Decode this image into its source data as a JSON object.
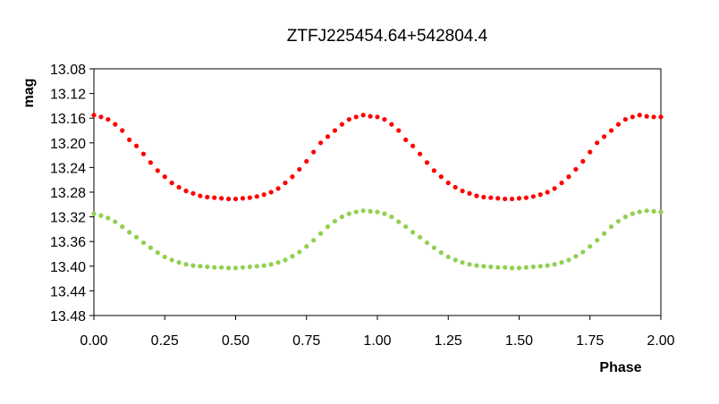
{
  "chart_data": {
    "type": "scatter",
    "title": "ZTFJ225454.64+542804.4",
    "xlabel": "Phase",
    "ylabel": "mag",
    "xlim": [
      0.0,
      2.0
    ],
    "ylim": [
      13.08,
      13.48
    ],
    "y_inverted": true,
    "x_ticks": [
      "0.00",
      "0.25",
      "0.50",
      "0.75",
      "1.00",
      "1.25",
      "1.50",
      "1.75",
      "2.00"
    ],
    "y_ticks": [
      "13.08",
      "13.12",
      "13.16",
      "13.20",
      "13.24",
      "13.28",
      "13.32",
      "13.36",
      "13.40",
      "13.44",
      "13.48"
    ],
    "grid": false,
    "legend": "none",
    "series": [
      {
        "color": "#ff0000",
        "x": [
          0.0,
          0.025,
          0.05,
          0.075,
          0.1,
          0.125,
          0.15,
          0.175,
          0.2,
          0.225,
          0.25,
          0.275,
          0.3,
          0.325,
          0.35,
          0.375,
          0.4,
          0.425,
          0.45,
          0.475,
          0.5,
          0.525,
          0.55,
          0.575,
          0.6,
          0.625,
          0.65,
          0.675,
          0.7,
          0.725,
          0.75,
          0.775,
          0.8,
          0.825,
          0.85,
          0.875,
          0.9,
          0.925,
          0.95,
          0.975,
          1.0,
          1.025,
          1.05,
          1.075,
          1.1,
          1.125,
          1.15,
          1.175,
          1.2,
          1.225,
          1.25,
          1.275,
          1.3,
          1.325,
          1.35,
          1.375,
          1.4,
          1.425,
          1.45,
          1.475,
          1.5,
          1.525,
          1.55,
          1.575,
          1.6,
          1.625,
          1.65,
          1.675,
          1.7,
          1.725,
          1.75,
          1.775,
          1.8,
          1.825,
          1.85,
          1.875,
          1.9,
          1.925,
          1.95,
          1.975,
          2.0
        ],
        "y": [
          13.155,
          13.158,
          13.162,
          13.17,
          13.18,
          13.195,
          13.205,
          13.218,
          13.232,
          13.245,
          13.255,
          13.265,
          13.272,
          13.278,
          13.282,
          13.286,
          13.288,
          13.289,
          13.29,
          13.291,
          13.291,
          13.29,
          13.289,
          13.287,
          13.284,
          13.28,
          13.274,
          13.265,
          13.255,
          13.243,
          13.23,
          13.215,
          13.2,
          13.19,
          13.18,
          13.17,
          13.162,
          13.158,
          13.155,
          13.157,
          13.158,
          13.162,
          13.17,
          13.18,
          13.195,
          13.205,
          13.218,
          13.232,
          13.245,
          13.255,
          13.265,
          13.272,
          13.278,
          13.282,
          13.286,
          13.288,
          13.289,
          13.29,
          13.291,
          13.291,
          13.29,
          13.289,
          13.287,
          13.284,
          13.28,
          13.274,
          13.265,
          13.255,
          13.243,
          13.23,
          13.215,
          13.2,
          13.19,
          13.18,
          13.17,
          13.162,
          13.158,
          13.155,
          13.157,
          13.158,
          13.158
        ]
      },
      {
        "color": "#92d050",
        "x": [
          0.0,
          0.025,
          0.05,
          0.075,
          0.1,
          0.125,
          0.15,
          0.175,
          0.2,
          0.225,
          0.25,
          0.275,
          0.3,
          0.325,
          0.35,
          0.375,
          0.4,
          0.425,
          0.45,
          0.475,
          0.5,
          0.525,
          0.55,
          0.575,
          0.6,
          0.625,
          0.65,
          0.675,
          0.7,
          0.725,
          0.75,
          0.775,
          0.8,
          0.825,
          0.85,
          0.875,
          0.9,
          0.925,
          0.95,
          0.975,
          1.0,
          1.025,
          1.05,
          1.075,
          1.1,
          1.125,
          1.15,
          1.175,
          1.2,
          1.225,
          1.25,
          1.275,
          1.3,
          1.325,
          1.35,
          1.375,
          1.4,
          1.425,
          1.45,
          1.475,
          1.5,
          1.525,
          1.55,
          1.575,
          1.6,
          1.625,
          1.65,
          1.675,
          1.7,
          1.725,
          1.75,
          1.775,
          1.8,
          1.825,
          1.85,
          1.875,
          1.9,
          1.925,
          1.95,
          1.975,
          2.0
        ],
        "y": [
          13.315,
          13.318,
          13.322,
          13.328,
          13.336,
          13.345,
          13.353,
          13.362,
          13.37,
          13.378,
          13.385,
          13.39,
          13.394,
          13.397,
          13.399,
          13.4,
          13.401,
          13.402,
          13.402,
          13.403,
          13.403,
          13.402,
          13.401,
          13.4,
          13.399,
          13.397,
          13.394,
          13.39,
          13.384,
          13.377,
          13.368,
          13.358,
          13.347,
          13.336,
          13.327,
          13.32,
          13.315,
          13.312,
          13.31,
          13.311,
          13.312,
          13.315,
          13.32,
          13.328,
          13.336,
          13.345,
          13.353,
          13.362,
          13.37,
          13.378,
          13.385,
          13.39,
          13.394,
          13.397,
          13.399,
          13.4,
          13.401,
          13.402,
          13.402,
          13.403,
          13.403,
          13.402,
          13.401,
          13.4,
          13.399,
          13.397,
          13.394,
          13.39,
          13.384,
          13.377,
          13.368,
          13.358,
          13.347,
          13.336,
          13.327,
          13.32,
          13.315,
          13.312,
          13.31,
          13.311,
          13.312
        ]
      }
    ]
  }
}
